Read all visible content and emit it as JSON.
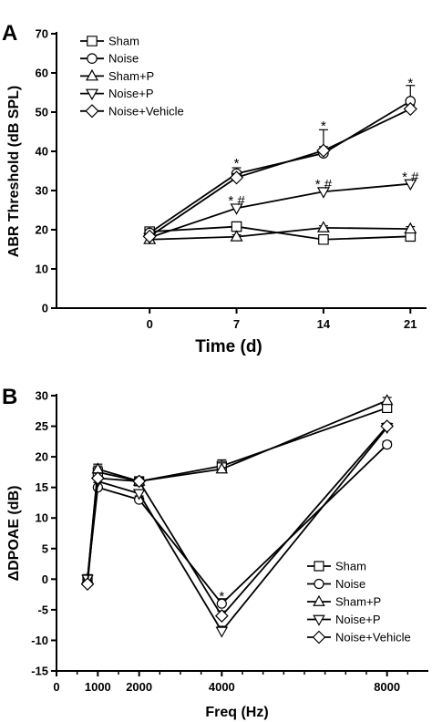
{
  "chart_data": [
    {
      "panel": "A",
      "type": "line",
      "xlabel": "Time (d)",
      "ylabel": "ABR Threshold (dB SPL)",
      "x": [
        0,
        7,
        14,
        21
      ],
      "x_tick_labels": [
        "0",
        "7",
        "14",
        "21"
      ],
      "y_ticks": [
        "0",
        "10",
        "20",
        "30",
        "40",
        "50",
        "60",
        "70"
      ],
      "ylim": [
        0,
        70
      ],
      "grid": false,
      "legend_position": "top-left",
      "series": [
        {
          "name": "Sham",
          "marker": "square",
          "values": [
            19.5,
            20.8,
            17.5,
            18.3
          ],
          "err": [
            0.8,
            0.8,
            0.5,
            0.6
          ]
        },
        {
          "name": "Noise",
          "marker": "circle",
          "values": [
            19.2,
            34.3,
            39.5,
            52.8
          ],
          "err": [
            0.8,
            1.5,
            6.0,
            4.0
          ]
        },
        {
          "name": "Sham+P",
          "marker": "triangle-up",
          "values": [
            17.5,
            18.2,
            20.5,
            20.2
          ],
          "err": [
            0.5,
            0.5,
            0.5,
            0.6
          ]
        },
        {
          "name": "Noise+P",
          "marker": "triangle-down",
          "values": [
            18.0,
            25.5,
            29.7,
            31.7
          ],
          "err": [
            0.6,
            0.8,
            0.6,
            0.5
          ]
        },
        {
          "name": "Noise+Vehicle",
          "marker": "diamond",
          "values": [
            18.3,
            33.3,
            40.2,
            50.8
          ],
          "err": [
            0.6,
            1.0,
            1.0,
            1.0
          ]
        }
      ],
      "annotations": [
        {
          "x": 7,
          "y": 37.0,
          "text": "*"
        },
        {
          "x": 14,
          "y": 46.5,
          "text": "*"
        },
        {
          "x": 21,
          "y": 57.5,
          "text": "*"
        },
        {
          "x": 7,
          "y": 27.5,
          "text": "*#"
        },
        {
          "x": 14,
          "y": 31.6,
          "text": "*#"
        },
        {
          "x": 21,
          "y": 33.5,
          "text": "*#"
        }
      ]
    },
    {
      "panel": "B",
      "type": "line",
      "xlabel": "Freq (Hz)",
      "ylabel": "ΔDPOAE (dB)",
      "x": [
        750,
        1000,
        2000,
        4000,
        8000
      ],
      "x_ticks": [
        0,
        1000,
        2000,
        4000,
        8000
      ],
      "x_tick_labels": [
        "0",
        "1000",
        "2000",
        "4000",
        "8000"
      ],
      "y_ticks": [
        "-15",
        "-10",
        "-5",
        "0",
        "5",
        "10",
        "15",
        "20",
        "25",
        "30"
      ],
      "ylim": [
        -15,
        30
      ],
      "grid": false,
      "legend_position": "bottom-right",
      "series": [
        {
          "name": "Sham",
          "marker": "square",
          "values": [
            0,
            17.5,
            16.0,
            18.5,
            28.0
          ],
          "err": [
            0.4,
            1.0,
            0.6,
            1.0,
            0.5
          ]
        },
        {
          "name": "Noise",
          "marker": "circle",
          "values": [
            0,
            15.0,
            13.0,
            -4.0,
            22.0
          ],
          "err": [
            0.4,
            0.8,
            0.6,
            0.8,
            0.5
          ]
        },
        {
          "name": "Sham+P",
          "marker": "triangle-up",
          "values": [
            0,
            18.0,
            16.0,
            18.0,
            29.2
          ],
          "err": [
            0.4,
            0.8,
            0.6,
            1.0,
            0.5
          ]
        },
        {
          "name": "Noise+P",
          "marker": "triangle-down",
          "values": [
            0,
            16.0,
            14.0,
            -8.5,
            24.8
          ],
          "err": [
            0.4,
            0.8,
            0.6,
            0.8,
            0.5
          ]
        },
        {
          "name": "Noise+Vehicle",
          "marker": "diamond",
          "values": [
            -0.8,
            16.5,
            16.0,
            -6.0,
            25.0
          ],
          "err": [
            0.4,
            0.8,
            0.6,
            0.8,
            0.5
          ]
        }
      ],
      "annotations": [
        {
          "x": 4000,
          "y": -2.8,
          "text": "*"
        }
      ]
    }
  ],
  "panel_a_label": "A",
  "panel_b_label": "B"
}
